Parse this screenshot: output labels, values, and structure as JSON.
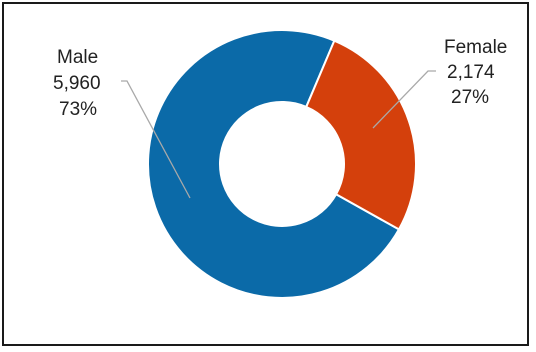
{
  "chart_data": {
    "type": "pie",
    "subtype": "donut",
    "title": "",
    "legend": "none",
    "slices": [
      {
        "label": "Male",
        "value": 5960,
        "value_text": "5,960",
        "percent_text": "73%",
        "color": "#0b6aa8"
      },
      {
        "label": "Female",
        "value": 2174,
        "value_text": "2,174",
        "percent_text": "27%",
        "color": "#d4400c"
      }
    ]
  }
}
